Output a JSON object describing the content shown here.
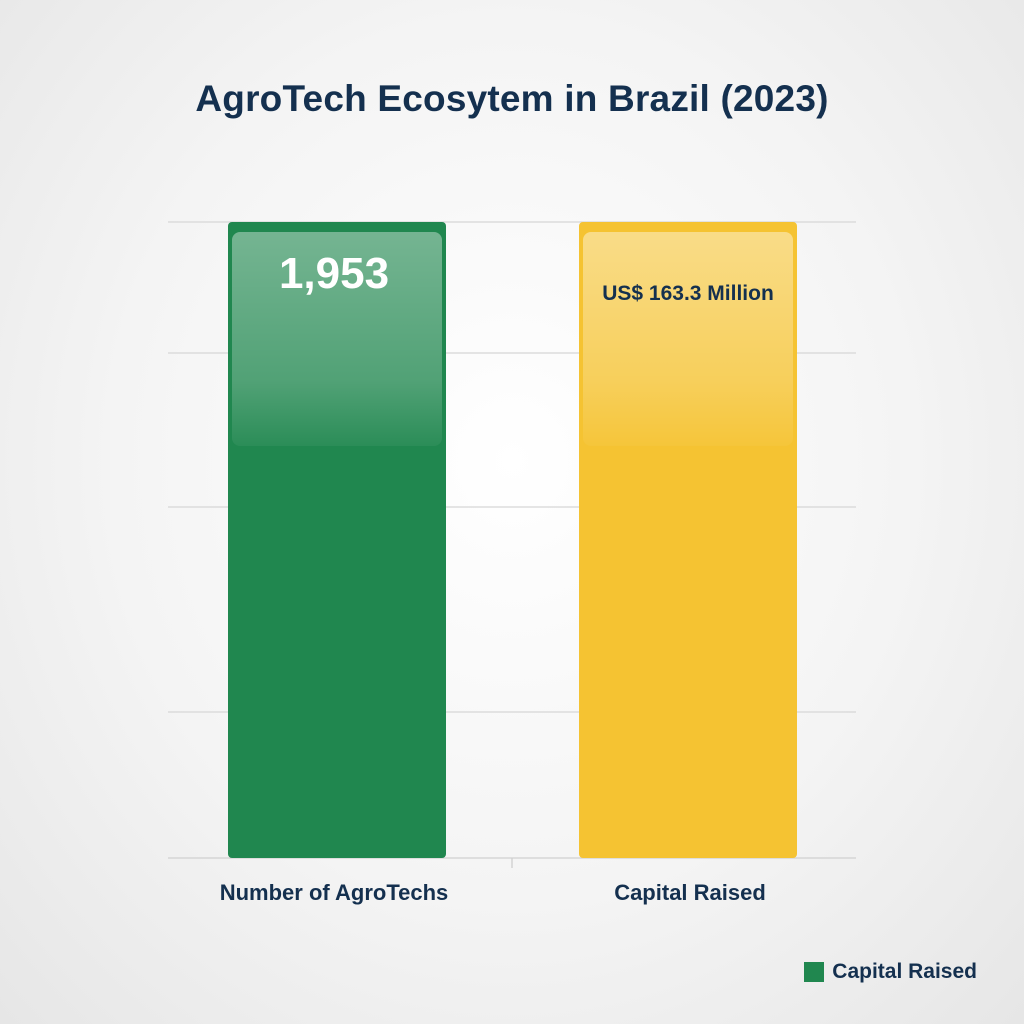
{
  "chart_data": {
    "type": "bar",
    "title": "AgroTech Ecosytem in Brazil (2023)",
    "categories": [
      "Number of AgroTechs",
      "Capital Raised"
    ],
    "data_labels": [
      "1,953",
      "US$ 163.3 Million"
    ],
    "values": [
      1953,
      163.3
    ],
    "colors": [
      "#20874f",
      "#f5c332"
    ],
    "label_colors": [
      "#ffffff",
      "#14304f"
    ],
    "normalized_heights": [
      1,
      1
    ],
    "grid": true,
    "legend": {
      "placement": "bottom-right",
      "entries": [
        {
          "label": "Capital Raised",
          "color": "#20874f"
        }
      ]
    }
  }
}
